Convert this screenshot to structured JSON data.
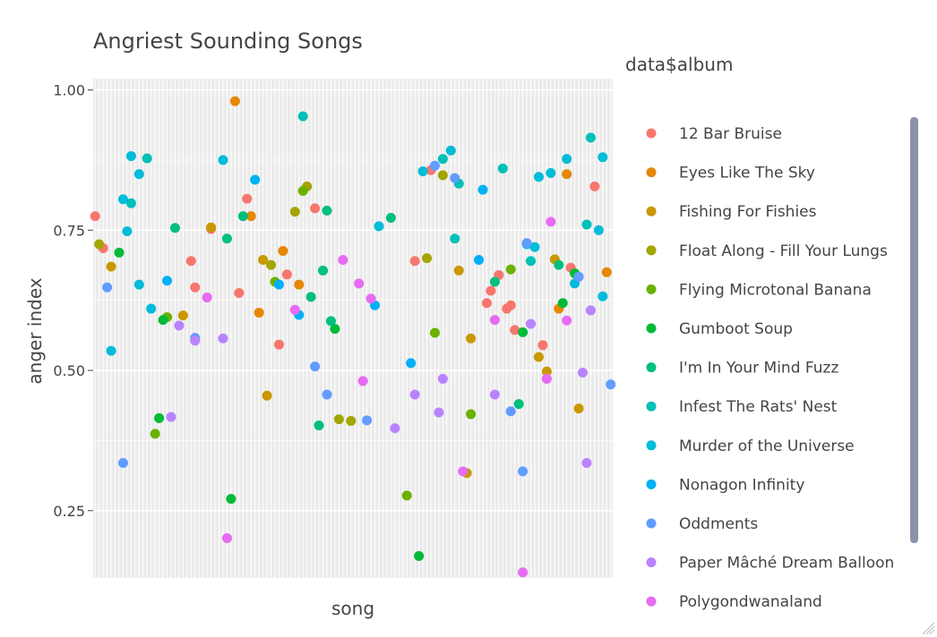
{
  "chart_data": {
    "type": "scatter",
    "title": "Angriest Sounding Songs",
    "xlabel": "song",
    "ylabel": "anger index",
    "ylim": [
      0.13,
      1.02
    ],
    "yticks": [
      0.25,
      0.5,
      0.75,
      1.0
    ],
    "ytick_labels": [
      "0.25",
      "0.50",
      "0.75",
      "1.00"
    ],
    "x_tick_labels_shown": false,
    "legend_title": "data$album",
    "legend_position": "right",
    "grid": true,
    "series": [
      {
        "name": "12 Bar Bruise",
        "color": "#F8766D",
        "points": [
          {
            "x": 0,
            "y": 0.775
          },
          {
            "x": 2,
            "y": 0.718
          },
          {
            "x": 24,
            "y": 0.695
          },
          {
            "x": 25,
            "y": 0.648
          },
          {
            "x": 29,
            "y": 0.752
          },
          {
            "x": 36,
            "y": 0.638
          },
          {
            "x": 38,
            "y": 0.806
          },
          {
            "x": 46,
            "y": 0.546
          },
          {
            "x": 48,
            "y": 0.671
          },
          {
            "x": 55,
            "y": 0.789
          },
          {
            "x": 80,
            "y": 0.695
          },
          {
            "x": 84,
            "y": 0.857
          },
          {
            "x": 98,
            "y": 0.62
          },
          {
            "x": 99,
            "y": 0.642
          },
          {
            "x": 101,
            "y": 0.67
          },
          {
            "x": 103,
            "y": 0.61
          },
          {
            "x": 104,
            "y": 0.616
          },
          {
            "x": 105,
            "y": 0.572
          },
          {
            "x": 112,
            "y": 0.545
          },
          {
            "x": 119,
            "y": 0.683
          },
          {
            "x": 125,
            "y": 0.828
          }
        ]
      },
      {
        "name": "Eyes Like The Sky",
        "color": "#E58700",
        "points": [
          {
            "x": 35,
            "y": 0.98
          },
          {
            "x": 39,
            "y": 0.775
          },
          {
            "x": 41,
            "y": 0.603
          },
          {
            "x": 47,
            "y": 0.713
          },
          {
            "x": 51,
            "y": 0.653
          },
          {
            "x": 116,
            "y": 0.61
          },
          {
            "x": 118,
            "y": 0.85
          },
          {
            "x": 128,
            "y": 0.675
          }
        ]
      },
      {
        "name": "Fishing For Fishies",
        "color": "#C99800",
        "points": [
          {
            "x": 4,
            "y": 0.685
          },
          {
            "x": 22,
            "y": 0.598
          },
          {
            "x": 29,
            "y": 0.755
          },
          {
            "x": 42,
            "y": 0.697
          },
          {
            "x": 43,
            "y": 0.455
          },
          {
            "x": 91,
            "y": 0.678
          },
          {
            "x": 93,
            "y": 0.317
          },
          {
            "x": 94,
            "y": 0.557
          },
          {
            "x": 111,
            "y": 0.524
          },
          {
            "x": 113,
            "y": 0.498
          },
          {
            "x": 115,
            "y": 0.698
          },
          {
            "x": 121,
            "y": 0.432
          }
        ]
      },
      {
        "name": "Float Along - Fill Your Lungs",
        "color": "#A3A500",
        "points": [
          {
            "x": 1,
            "y": 0.725
          },
          {
            "x": 44,
            "y": 0.688
          },
          {
            "x": 50,
            "y": 0.783
          },
          {
            "x": 53,
            "y": 0.828
          },
          {
            "x": 61,
            "y": 0.413
          },
          {
            "x": 64,
            "y": 0.41
          },
          {
            "x": 83,
            "y": 0.7
          },
          {
            "x": 87,
            "y": 0.848
          }
        ]
      },
      {
        "name": "Flying Microtonal Banana",
        "color": "#6BB100",
        "points": [
          {
            "x": 15,
            "y": 0.387
          },
          {
            "x": 18,
            "y": 0.595
          },
          {
            "x": 45,
            "y": 0.658
          },
          {
            "x": 52,
            "y": 0.82
          },
          {
            "x": 78,
            "y": 0.277
          },
          {
            "x": 85,
            "y": 0.567
          },
          {
            "x": 94,
            "y": 0.422
          },
          {
            "x": 104,
            "y": 0.68
          }
        ]
      },
      {
        "name": "Gumboot Soup",
        "color": "#00BA38",
        "points": [
          {
            "x": 6,
            "y": 0.71
          },
          {
            "x": 16,
            "y": 0.415
          },
          {
            "x": 17,
            "y": 0.59
          },
          {
            "x": 34,
            "y": 0.271
          },
          {
            "x": 60,
            "y": 0.574
          },
          {
            "x": 81,
            "y": 0.169
          },
          {
            "x": 107,
            "y": 0.568
          },
          {
            "x": 117,
            "y": 0.62
          },
          {
            "x": 120,
            "y": 0.673
          }
        ]
      },
      {
        "name": "I'm In Your Mind Fuzz",
        "color": "#00BF7D",
        "points": [
          {
            "x": 20,
            "y": 0.754
          },
          {
            "x": 33,
            "y": 0.735
          },
          {
            "x": 37,
            "y": 0.775
          },
          {
            "x": 54,
            "y": 0.631
          },
          {
            "x": 56,
            "y": 0.402
          },
          {
            "x": 57,
            "y": 0.678
          },
          {
            "x": 58,
            "y": 0.785
          },
          {
            "x": 59,
            "y": 0.588
          },
          {
            "x": 74,
            "y": 0.772
          },
          {
            "x": 100,
            "y": 0.658
          },
          {
            "x": 106,
            "y": 0.44
          },
          {
            "x": 116,
            "y": 0.688
          }
        ]
      },
      {
        "name": "Infest The Rats' Nest",
        "color": "#00C0B8",
        "points": [
          {
            "x": 9,
            "y": 0.798
          },
          {
            "x": 13,
            "y": 0.878
          },
          {
            "x": 52,
            "y": 0.953
          },
          {
            "x": 87,
            "y": 0.877
          },
          {
            "x": 90,
            "y": 0.735
          },
          {
            "x": 91,
            "y": 0.833
          },
          {
            "x": 102,
            "y": 0.86
          },
          {
            "x": 109,
            "y": 0.695
          },
          {
            "x": 123,
            "y": 0.76
          },
          {
            "x": 124,
            "y": 0.915
          }
        ]
      },
      {
        "name": "Murder of the Universe",
        "color": "#00BCD8",
        "points": [
          {
            "x": 4,
            "y": 0.535
          },
          {
            "x": 7,
            "y": 0.805
          },
          {
            "x": 8,
            "y": 0.748
          },
          {
            "x": 9,
            "y": 0.882
          },
          {
            "x": 11,
            "y": 0.653
          },
          {
            "x": 11,
            "y": 0.85
          },
          {
            "x": 14,
            "y": 0.61
          },
          {
            "x": 32,
            "y": 0.875
          },
          {
            "x": 71,
            "y": 0.757
          },
          {
            "x": 82,
            "y": 0.855
          },
          {
            "x": 89,
            "y": 0.892
          },
          {
            "x": 108,
            "y": 0.725
          },
          {
            "x": 110,
            "y": 0.72
          },
          {
            "x": 111,
            "y": 0.845
          },
          {
            "x": 114,
            "y": 0.852
          },
          {
            "x": 118,
            "y": 0.877
          },
          {
            "x": 120,
            "y": 0.655
          },
          {
            "x": 126,
            "y": 0.75
          },
          {
            "x": 127,
            "y": 0.632
          },
          {
            "x": 127,
            "y": 0.88
          }
        ]
      },
      {
        "name": "Nonagon Infinity",
        "color": "#00B0F6",
        "points": [
          {
            "x": 18,
            "y": 0.66
          },
          {
            "x": 40,
            "y": 0.84
          },
          {
            "x": 46,
            "y": 0.653
          },
          {
            "x": 51,
            "y": 0.599
          },
          {
            "x": 70,
            "y": 0.616
          },
          {
            "x": 79,
            "y": 0.513
          },
          {
            "x": 96,
            "y": 0.697
          },
          {
            "x": 97,
            "y": 0.822
          }
        ]
      },
      {
        "name": "Oddments",
        "color": "#619CFF",
        "points": [
          {
            "x": 3,
            "y": 0.648
          },
          {
            "x": 7,
            "y": 0.335
          },
          {
            "x": 25,
            "y": 0.558
          },
          {
            "x": 55,
            "y": 0.507
          },
          {
            "x": 58,
            "y": 0.457
          },
          {
            "x": 68,
            "y": 0.411
          },
          {
            "x": 85,
            "y": 0.865
          },
          {
            "x": 90,
            "y": 0.843
          },
          {
            "x": 104,
            "y": 0.427
          },
          {
            "x": 107,
            "y": 0.32
          },
          {
            "x": 108,
            "y": 0.727
          },
          {
            "x": 121,
            "y": 0.667
          },
          {
            "x": 129,
            "y": 0.475
          }
        ]
      },
      {
        "name": "Paper Mâché Dream Balloon",
        "color": "#B983FF",
        "points": [
          {
            "x": 19,
            "y": 0.417
          },
          {
            "x": 21,
            "y": 0.58
          },
          {
            "x": 25,
            "y": 0.553
          },
          {
            "x": 32,
            "y": 0.557
          },
          {
            "x": 75,
            "y": 0.397
          },
          {
            "x": 80,
            "y": 0.457
          },
          {
            "x": 86,
            "y": 0.425
          },
          {
            "x": 87,
            "y": 0.485
          },
          {
            "x": 100,
            "y": 0.457
          },
          {
            "x": 109,
            "y": 0.583
          },
          {
            "x": 122,
            "y": 0.496
          },
          {
            "x": 123,
            "y": 0.335
          },
          {
            "x": 124,
            "y": 0.607
          }
        ]
      },
      {
        "name": "Polygondwanaland",
        "color": "#E76BF3",
        "points": [
          {
            "x": 28,
            "y": 0.63
          },
          {
            "x": 33,
            "y": 0.201
          },
          {
            "x": 50,
            "y": 0.608
          },
          {
            "x": 62,
            "y": 0.697
          },
          {
            "x": 66,
            "y": 0.655
          },
          {
            "x": 67,
            "y": 0.481
          },
          {
            "x": 69,
            "y": 0.628
          },
          {
            "x": 92,
            "y": 0.32
          },
          {
            "x": 100,
            "y": 0.59
          },
          {
            "x": 107,
            "y": 0.14
          },
          {
            "x": 113,
            "y": 0.485
          },
          {
            "x": 114,
            "y": 0.765
          },
          {
            "x": 118,
            "y": 0.589
          }
        ]
      }
    ]
  }
}
